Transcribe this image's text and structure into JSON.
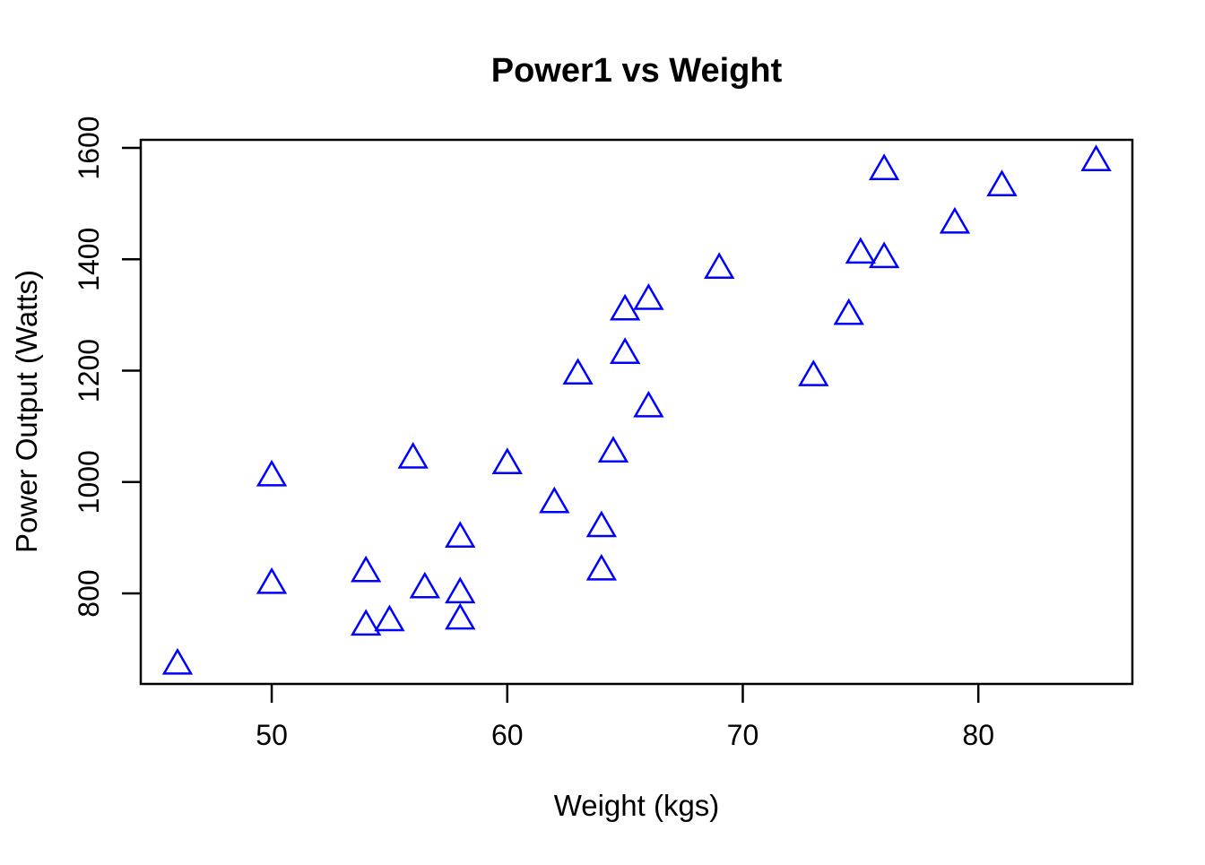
{
  "title": "Power1 vs Weight",
  "chart_data": {
    "type": "scatter",
    "title": "Power1 vs Weight",
    "xlabel": "Weight (kgs)",
    "ylabel": "Power Output (Watts)",
    "x_ticks": [
      50,
      60,
      70,
      80
    ],
    "y_ticks": [
      800,
      1000,
      1200,
      1400,
      1600
    ],
    "xlim": [
      44.44,
      86.54
    ],
    "ylim": [
      637.4,
      1614.5
    ],
    "grid": false,
    "legend": "none",
    "marker": "open-triangle",
    "marker_color": "#0000FF",
    "axis_color": "#000000",
    "background_color": "#FFFFFF",
    "points": [
      {
        "x": 46,
        "y": 677
      },
      {
        "x": 50,
        "y": 1015
      },
      {
        "x": 50,
        "y": 822
      },
      {
        "x": 54,
        "y": 843
      },
      {
        "x": 54,
        "y": 747
      },
      {
        "x": 55,
        "y": 755
      },
      {
        "x": 56,
        "y": 1047
      },
      {
        "x": 56.5,
        "y": 814
      },
      {
        "x": 58,
        "y": 905
      },
      {
        "x": 58,
        "y": 805
      },
      {
        "x": 58,
        "y": 758
      },
      {
        "x": 60,
        "y": 1037
      },
      {
        "x": 62,
        "y": 967
      },
      {
        "x": 63,
        "y": 1198
      },
      {
        "x": 64,
        "y": 924
      },
      {
        "x": 64,
        "y": 846
      },
      {
        "x": 64.5,
        "y": 1058
      },
      {
        "x": 65,
        "y": 1313
      },
      {
        "x": 65,
        "y": 1235
      },
      {
        "x": 66,
        "y": 1332
      },
      {
        "x": 66,
        "y": 1139
      },
      {
        "x": 69,
        "y": 1388
      },
      {
        "x": 73,
        "y": 1195
      },
      {
        "x": 74.5,
        "y": 1305
      },
      {
        "x": 75,
        "y": 1415
      },
      {
        "x": 76,
        "y": 1565
      },
      {
        "x": 76,
        "y": 1407
      },
      {
        "x": 79,
        "y": 1469
      },
      {
        "x": 81,
        "y": 1536
      },
      {
        "x": 85,
        "y": 1581
      }
    ]
  }
}
